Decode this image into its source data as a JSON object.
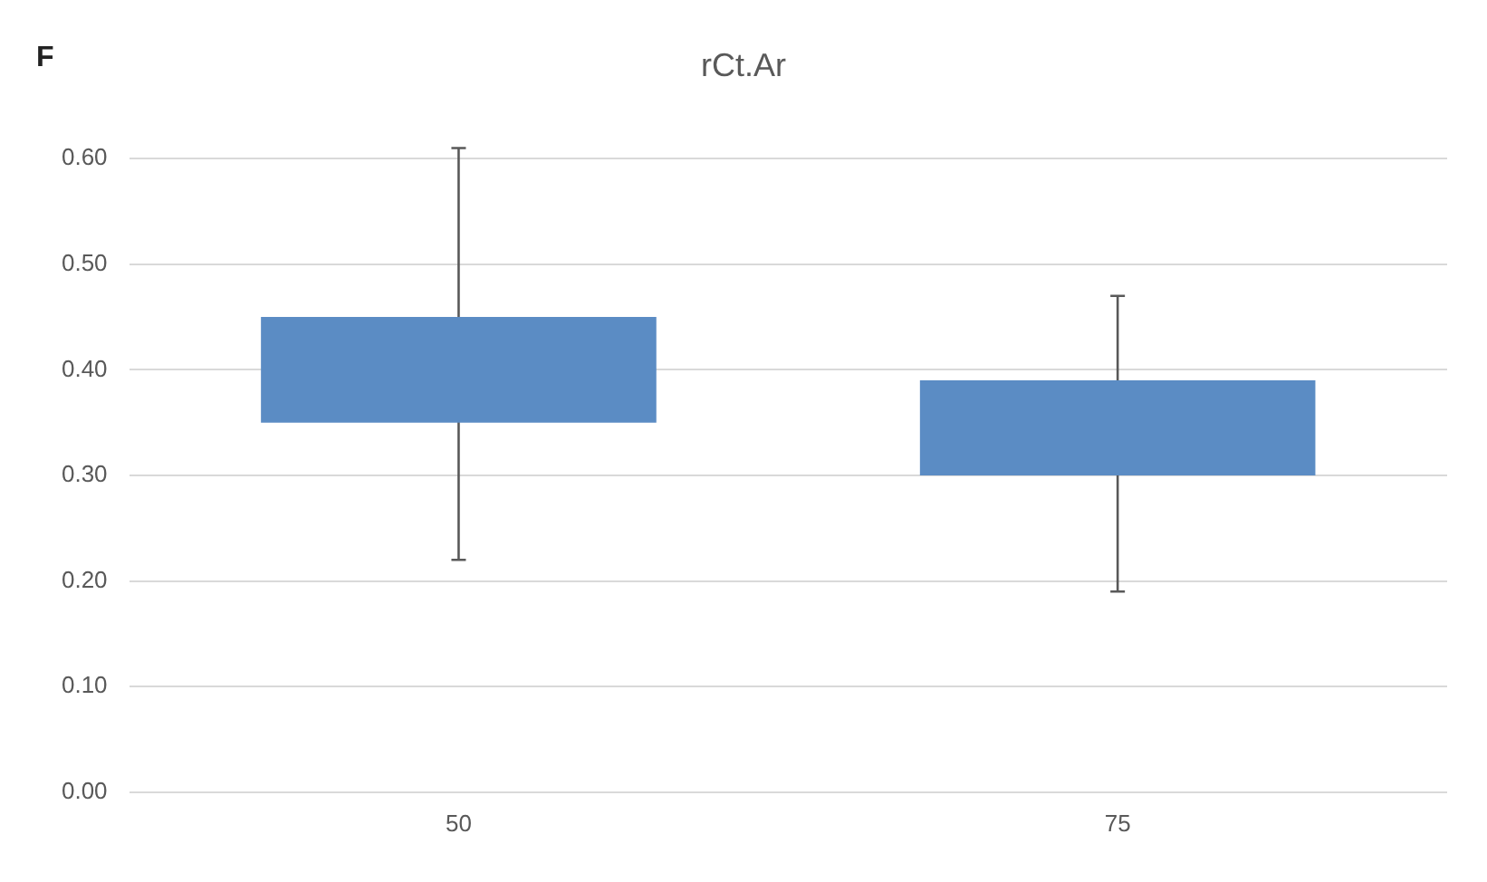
{
  "chart_data": {
    "type": "bar",
    "title": "rCt.Ar",
    "annotations": [
      "F"
    ],
    "categories": [
      "50",
      "75"
    ],
    "base": [
      0.35,
      0.3
    ],
    "values": [
      0.1,
      0.09
    ],
    "errors": [
      [
        0.22,
        0.61
      ],
      [
        0.19,
        0.47
      ]
    ],
    "colors": [
      "#5b8cc4",
      "#5b8cc4"
    ],
    "ylim": [
      0,
      0.6
    ],
    "yticks": [
      {
        "value": 0,
        "label": "0.00"
      },
      {
        "value": 0.1,
        "label": "0.10"
      },
      {
        "value": 0.2,
        "label": "0.20"
      },
      {
        "value": 0.3,
        "label": "0.30"
      },
      {
        "value": 0.4,
        "label": "0.40"
      },
      {
        "value": 0.5,
        "label": "0.50"
      },
      {
        "value": 0.6,
        "label": "0.60"
      }
    ],
    "grid": "y",
    "legend": false
  }
}
